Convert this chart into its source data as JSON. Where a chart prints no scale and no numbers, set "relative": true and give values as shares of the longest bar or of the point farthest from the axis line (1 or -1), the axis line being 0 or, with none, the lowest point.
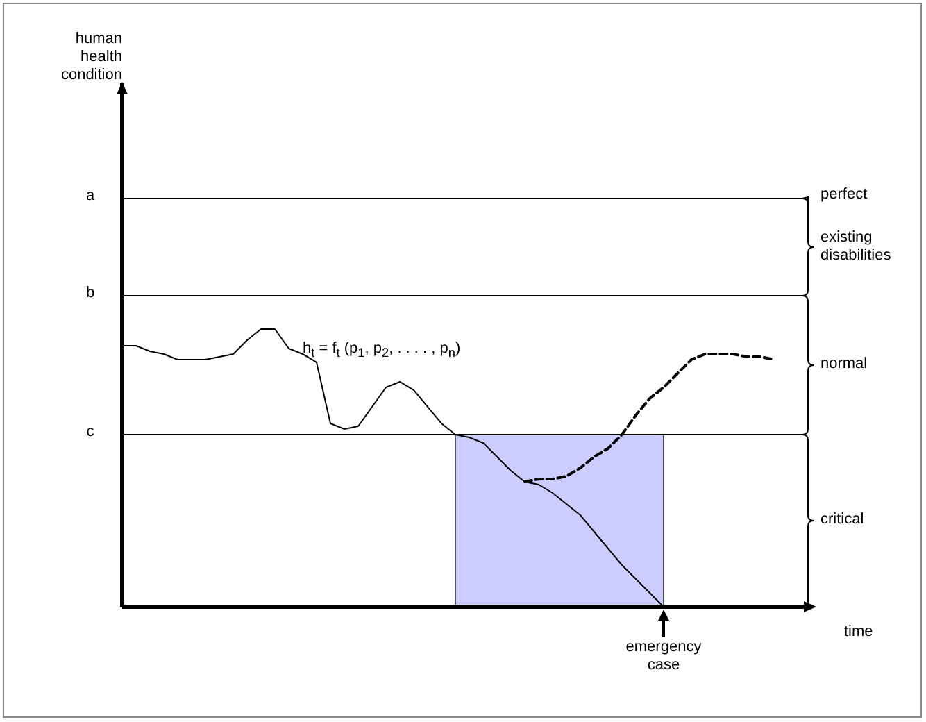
{
  "chart_data": {
    "type": "line",
    "relative": true,
    "xlabel": "time",
    "tick_labels": false,
    "marker": "none",
    "categories": [
      null,
      null,
      null,
      null,
      null,
      null,
      null,
      null,
      null,
      null,
      null,
      null,
      null,
      null,
      null,
      null,
      null,
      null,
      null,
      null,
      null,
      null,
      null,
      null,
      null,
      null,
      null,
      null,
      null,
      null,
      null,
      null,
      null,
      null,
      null,
      null,
      null,
      null,
      null,
      null,
      null,
      null,
      null,
      null,
      null,
      null,
      null,
      null,
      null,
      null
    ],
    "series": [
      {
        "color": "#000000",
        "line_style": "solid",
        "values": [
          0.94,
          0.94,
          0.92,
          0.91,
          0.89,
          0.89,
          0.89,
          0.9,
          0.91,
          0.96,
          1.0,
          1.0,
          0.93,
          0.91,
          0.88,
          0.66,
          0.64,
          0.65,
          0.72,
          0.79,
          0.81,
          0.78,
          0.72,
          0.66,
          0.62,
          0.61,
          0.59,
          0.54,
          0.49,
          0.45,
          0.44,
          0.41,
          0.37,
          0.33,
          0.27,
          0.21,
          0.15,
          0.1,
          0.05,
          0,
          null,
          null,
          null,
          null,
          null,
          null,
          null,
          null,
          null,
          null
        ]
      },
      {
        "color": "#000000",
        "line_style": "dashed",
        "values": [
          null,
          null,
          null,
          null,
          null,
          null,
          null,
          null,
          null,
          null,
          null,
          null,
          null,
          null,
          null,
          null,
          null,
          null,
          null,
          null,
          null,
          null,
          null,
          null,
          null,
          null,
          null,
          null,
          null,
          0.45,
          0.46,
          0.46,
          0.47,
          0.5,
          0.54,
          0.57,
          0.62,
          0.69,
          0.75,
          0.79,
          0.84,
          0.89,
          0.91,
          0.91,
          0.91,
          0.9,
          0.9,
          0.89,
          null,
          null
        ]
      }
    ],
    "ref_lines": [
      {
        "axis": "y",
        "value": 1.47,
        "label": "a"
      },
      {
        "axis": "y",
        "value": 1.12,
        "label": "b"
      },
      {
        "axis": "y",
        "value": 0.62,
        "label": "c"
      }
    ],
    "annotations": [
      "h$_{t}$ = f$_{t}$ (p$_{1}$, p$_{2}$, . . . . , p$_{n}$)",
      {
        "text": "emergency case",
        "y": 0
      },
      "perfect",
      "existing disabilities",
      "normal",
      "critical",
      "human health condition"
    ]
  }
}
